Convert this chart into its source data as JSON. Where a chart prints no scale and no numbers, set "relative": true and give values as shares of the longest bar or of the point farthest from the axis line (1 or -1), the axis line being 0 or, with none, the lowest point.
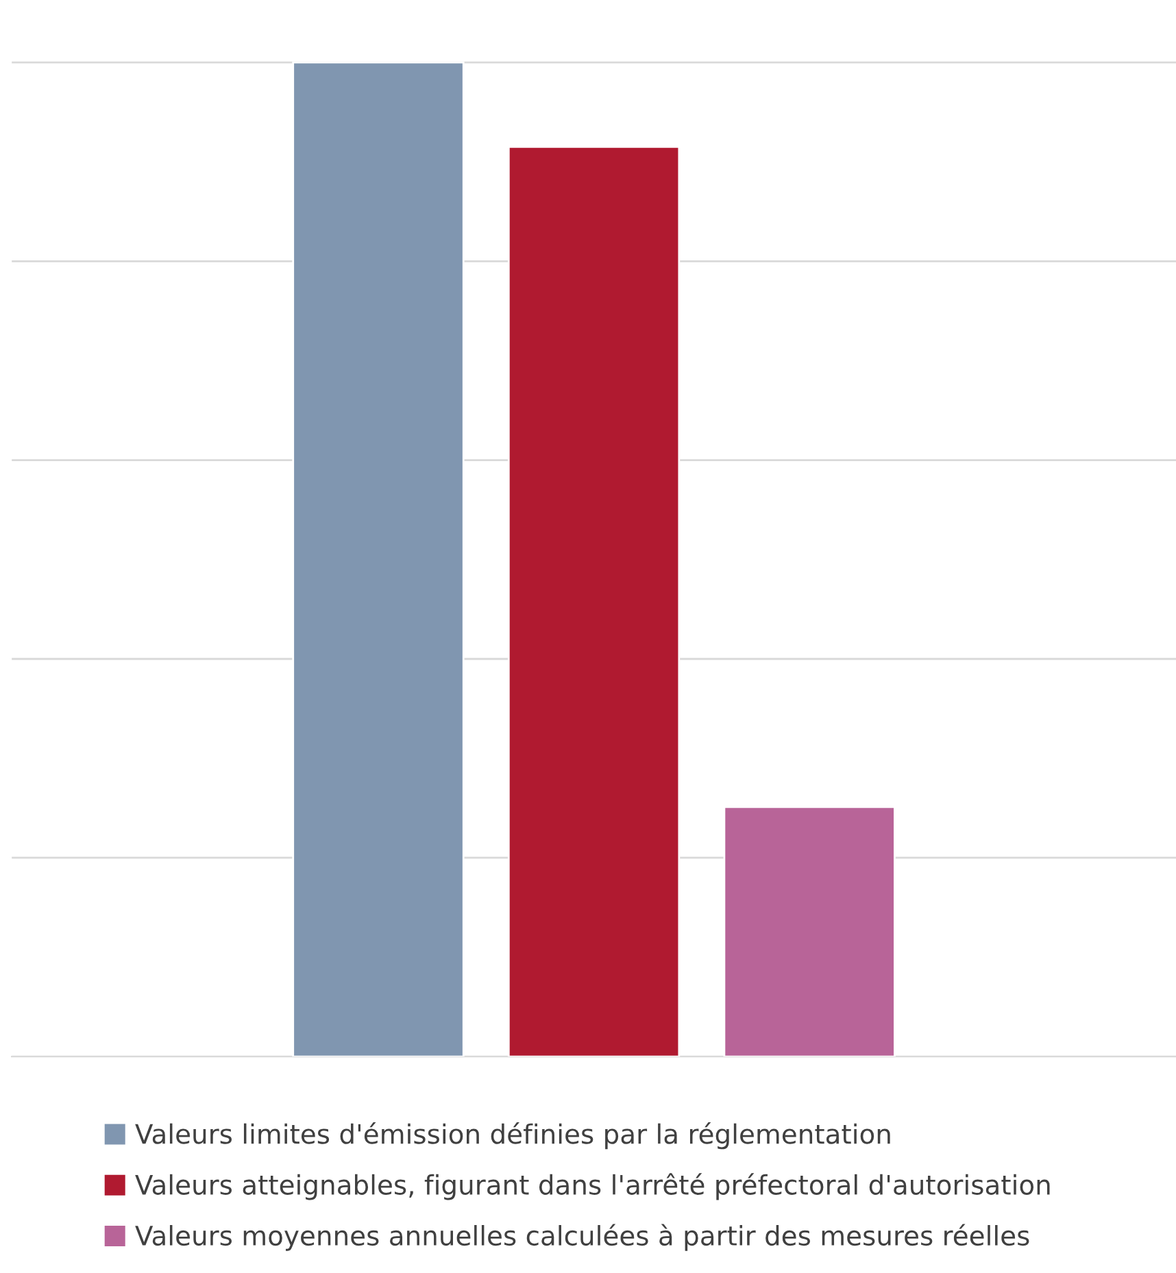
{
  "chart_data": {
    "type": "bar",
    "relative": true,
    "categories": [
      null
    ],
    "series": [
      {
        "name": "Valeurs limites d'émission définies par la réglementation",
        "color": "#8096b0",
        "values": [
          1
        ]
      },
      {
        "name": "Valeurs atteignables, figurant dans l'arrêté préfectoral d'autorisation",
        "color": "#b01a30",
        "values": [
          0.915
        ]
      },
      {
        "name": "Valeurs moyennes annuelles calculées à partir des mesures réelles",
        "color": "#b86498",
        "values": [
          0.251
        ]
      }
    ],
    "grid": "y",
    "legend": "bottom"
  }
}
